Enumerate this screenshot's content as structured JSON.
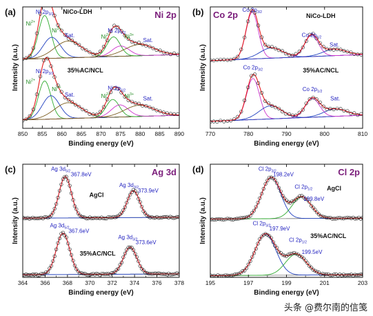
{
  "watermark": "头条 @费尔南的信笺",
  "colors": {
    "envelope": "#1a1a1a",
    "fit_total": "#e31a1c",
    "component_1": "#1f3fbf",
    "component_2": "#2eaa2e",
    "component_3": "#cc33cc",
    "component_4": "#19b3b3",
    "baseline": "#777777",
    "sat_fit": "#7a5c1e",
    "panel_title": "#7b1e7b",
    "label_blue": "#1f1fbf",
    "label_green": "#1f8a1f"
  },
  "chart_data": [
    {
      "panel": "(a)",
      "title": "Ni 2p",
      "type": "line",
      "xlabel": "Binding energy (eV)",
      "ylabel": "Intensity (a.u.)",
      "xlim": [
        850,
        890
      ],
      "xticks": [
        850,
        855,
        860,
        865,
        870,
        875,
        880,
        885,
        890
      ],
      "reverse_x": false,
      "ylim": [
        0,
        2.6
      ],
      "grid": false,
      "samples": [
        {
          "name": "NiCo-LDH",
          "offset": 1.3,
          "baseline": [
            0.18,
            0.28
          ],
          "points_step": 0.9,
          "peaks": [
            {
              "c": 855.6,
              "a": 0.92,
              "w": 1.6,
              "col": "component_2"
            },
            {
              "c": 857.4,
              "a": 0.45,
              "w": 2.2,
              "col": "component_1"
            },
            {
              "c": 861.6,
              "a": 0.36,
              "w": 3.5,
              "col": "sat_fit"
            },
            {
              "c": 873.2,
              "a": 0.42,
              "w": 1.7,
              "col": "component_2"
            },
            {
              "c": 875.0,
              "a": 0.22,
              "w": 2.2,
              "col": "component_3"
            },
            {
              "c": 879.8,
              "a": 0.24,
              "w": 3.8,
              "col": "sat_fit"
            }
          ]
        },
        {
          "name": "35%AC/NCL",
          "offset": 0.0,
          "baseline": [
            0.18,
            0.28
          ],
          "points_step": 0.9,
          "peaks": [
            {
              "c": 855.6,
              "a": 0.82,
              "w": 1.6,
              "col": "component_2"
            },
            {
              "c": 857.2,
              "a": 0.5,
              "w": 2.2,
              "col": "component_1"
            },
            {
              "c": 861.6,
              "a": 0.34,
              "w": 3.5,
              "col": "sat_fit"
            },
            {
              "c": 873.0,
              "a": 0.38,
              "w": 1.7,
              "col": "component_2"
            },
            {
              "c": 874.8,
              "a": 0.26,
              "w": 2.2,
              "col": "component_3"
            },
            {
              "c": 879.8,
              "a": 0.24,
              "w": 3.8,
              "col": "sat_fit"
            }
          ]
        }
      ],
      "labels": [
        {
          "text": "NiCo-LDH",
          "x": 864,
          "y": 2.45,
          "color": "#111111",
          "bold": true
        },
        {
          "text": "Ni 2p3/2",
          "x": 855.6,
          "y": 2.45,
          "color": "label_blue"
        },
        {
          "text": "Ni2+",
          "x": 852.0,
          "y": 2.2,
          "color": "label_green"
        },
        {
          "text": "Ni3+",
          "x": 858.6,
          "y": 2.05,
          "color": "label_green"
        },
        {
          "text": "Sat.",
          "x": 862.0,
          "y": 1.95,
          "color": "label_blue"
        },
        {
          "text": "Ni 2p1/2",
          "x": 874.0,
          "y": 2.05,
          "color": "label_blue"
        },
        {
          "text": "Ni2+",
          "x": 871.2,
          "y": 1.92,
          "color": "label_green"
        },
        {
          "text": "Ni3+",
          "x": 877.2,
          "y": 1.92,
          "color": "label_green"
        },
        {
          "text": "Sat.",
          "x": 882.0,
          "y": 1.85,
          "color": "label_blue"
        },
        {
          "text": "35%AC/NCL",
          "x": 866,
          "y": 1.2,
          "color": "#111111",
          "bold": true
        },
        {
          "text": "Ni 2p3/2",
          "x": 855.6,
          "y": 1.18,
          "color": "label_blue"
        },
        {
          "text": "Ni2+",
          "x": 852.0,
          "y": 0.95,
          "color": "label_green"
        },
        {
          "text": "Ni3+",
          "x": 858.6,
          "y": 0.8,
          "color": "label_green"
        },
        {
          "text": "Sat.",
          "x": 862.0,
          "y": 0.68,
          "color": "label_blue"
        },
        {
          "text": "Ni 2p1/2",
          "x": 874.0,
          "y": 0.82,
          "color": "label_blue"
        },
        {
          "text": "Ni2+",
          "x": 871.2,
          "y": 0.65,
          "color": "label_green"
        },
        {
          "text": "Ni3+",
          "x": 877.2,
          "y": 0.65,
          "color": "label_green"
        },
        {
          "text": "Sat.",
          "x": 882.0,
          "y": 0.6,
          "color": "label_blue"
        }
      ]
    },
    {
      "panel": "(b)",
      "title": "Co 2p",
      "type": "line",
      "xlabel": "Binding energy (eV)",
      "ylabel": "Intensity (a.u.)",
      "xlim": [
        770,
        810
      ],
      "xticks": [
        770,
        780,
        790,
        800,
        810
      ],
      "reverse_x": false,
      "ylim": [
        0,
        2.6
      ],
      "grid": false,
      "samples": [
        {
          "name": "NiCo-LDH",
          "offset": 1.3,
          "baseline": [
            0.15,
            0.28
          ],
          "points_step": 0.9,
          "peaks": [
            {
              "c": 781.0,
              "a": 1.0,
              "w": 1.6,
              "col": "component_3"
            },
            {
              "c": 786.0,
              "a": 0.22,
              "w": 3.0,
              "col": "component_1"
            },
            {
              "c": 796.6,
              "a": 0.46,
              "w": 1.8,
              "col": "component_3"
            },
            {
              "c": 802.6,
              "a": 0.14,
              "w": 3.0,
              "col": "component_1"
            }
          ]
        },
        {
          "name": "35%AC/NCL",
          "offset": 0.0,
          "baseline": [
            0.15,
            0.28
          ],
          "points_step": 0.9,
          "peaks": [
            {
              "c": 781.2,
              "a": 0.88,
              "w": 1.7,
              "col": "component_3"
            },
            {
              "c": 785.8,
              "a": 0.28,
              "w": 3.0,
              "col": "component_1"
            },
            {
              "c": 796.8,
              "a": 0.4,
              "w": 1.9,
              "col": "component_3"
            },
            {
              "c": 802.8,
              "a": 0.16,
              "w": 3.0,
              "col": "component_1"
            }
          ]
        }
      ],
      "labels": [
        {
          "text": "Co 2p3/2",
          "x": 781.0,
          "y": 2.5,
          "color": "label_blue"
        },
        {
          "text": "NiCo-LDH",
          "x": 799.0,
          "y": 2.36,
          "color": "#111111",
          "bold": true
        },
        {
          "text": "Co 2p1/2",
          "x": 796.6,
          "y": 1.96,
          "color": "label_blue"
        },
        {
          "text": "Sat.",
          "x": 802.6,
          "y": 1.75,
          "color": "label_blue"
        },
        {
          "text": "35%AC/NCL",
          "x": 799.0,
          "y": 1.2,
          "color": "#111111",
          "bold": true
        },
        {
          "text": "Co 2p3/2",
          "x": 781.2,
          "y": 1.26,
          "color": "label_blue"
        },
        {
          "text": "Co 2p1/2",
          "x": 796.8,
          "y": 0.8,
          "color": "label_blue"
        },
        {
          "text": "Sat.",
          "x": 802.8,
          "y": 0.6,
          "color": "label_blue"
        }
      ]
    },
    {
      "panel": "(c)",
      "title": "Ag 3d",
      "type": "line",
      "xlabel": "Binding energy (eV)",
      "ylabel": "Intensity (a.u.)",
      "xlim": [
        364,
        378
      ],
      "xticks": [
        364,
        366,
        368,
        370,
        372,
        374,
        376,
        378
      ],
      "reverse_x": false,
      "ylim": [
        0,
        2.6
      ],
      "grid": false,
      "samples": [
        {
          "name": "AgCl",
          "offset": 1.3,
          "baseline": [
            0.06,
            0.08
          ],
          "points_step": 0.15,
          "peaks": [
            {
              "c": 367.8,
              "a": 0.95,
              "w": 0.55,
              "col": "component_1"
            },
            {
              "c": 373.9,
              "a": 0.62,
              "w": 0.55,
              "col": "component_1"
            }
          ]
        },
        {
          "name": "35%AC/NCL",
          "offset": 0.0,
          "baseline": [
            0.06,
            0.08
          ],
          "points_step": 0.15,
          "peaks": [
            {
              "c": 367.6,
              "a": 0.95,
              "w": 0.6,
              "col": "component_1"
            },
            {
              "c": 373.6,
              "a": 0.62,
              "w": 0.6,
              "col": "component_1"
            }
          ]
        }
      ],
      "labels": [
        {
          "text": "Ag 3d5/2",
          "x": 367.4,
          "y": 2.45,
          "color": "label_blue"
        },
        {
          "text": "367.8eV",
          "x": 368.3,
          "y": 2.32,
          "color": "label_blue",
          "anchor": "start"
        },
        {
          "text": "Ag 3d3/2",
          "x": 373.5,
          "y": 2.08,
          "color": "label_blue"
        },
        {
          "text": "373.9eV",
          "x": 374.3,
          "y": 1.95,
          "color": "label_blue",
          "anchor": "start"
        },
        {
          "text": "AgCl",
          "x": 370.6,
          "y": 1.85,
          "color": "#111111",
          "bold": true
        },
        {
          "text": "Ag 3d5/2",
          "x": 367.3,
          "y": 1.15,
          "color": "label_blue"
        },
        {
          "text": "367.6eV",
          "x": 368.1,
          "y": 1.02,
          "color": "label_blue",
          "anchor": "start"
        },
        {
          "text": "Ag 3d3/2",
          "x": 373.4,
          "y": 0.88,
          "color": "label_blue"
        },
        {
          "text": "373.6eV",
          "x": 374.1,
          "y": 0.76,
          "color": "label_blue",
          "anchor": "start"
        },
        {
          "text": "35%AC/NCL",
          "x": 370.7,
          "y": 0.5,
          "color": "#111111",
          "bold": true
        }
      ]
    },
    {
      "panel": "(d)",
      "title": "Cl 2p",
      "type": "line",
      "xlabel": "Binding energy (eV)",
      "ylabel": "Intensity (a.u.)",
      "xlim": [
        195,
        203
      ],
      "xticks": [
        195,
        197,
        199,
        201,
        203
      ],
      "reverse_x": false,
      "ylim": [
        0,
        2.6
      ],
      "grid": false,
      "samples": [
        {
          "name": "AgCl",
          "offset": 1.3,
          "baseline": [
            0.04,
            0.06
          ],
          "points_step": 0.1,
          "peaks": [
            {
              "c": 198.2,
              "a": 0.95,
              "w": 0.5,
              "col": "component_1"
            },
            {
              "c": 199.8,
              "a": 0.5,
              "w": 0.5,
              "col": "component_2"
            }
          ]
        },
        {
          "name": "35%AC/NCL",
          "offset": 0.0,
          "baseline": [
            0.04,
            0.06
          ],
          "points_step": 0.1,
          "peaks": [
            {
              "c": 197.9,
              "a": 0.95,
              "w": 0.55,
              "col": "component_1"
            },
            {
              "c": 199.5,
              "a": 0.48,
              "w": 0.55,
              "col": "component_2"
            }
          ]
        }
      ],
      "labels": [
        {
          "text": "Cl 2p3/2",
          "x": 198.0,
          "y": 2.45,
          "color": "label_blue"
        },
        {
          "text": "198.2eV",
          "x": 198.3,
          "y": 2.32,
          "color": "label_blue",
          "anchor": "start"
        },
        {
          "text": "Cl 2p1/2",
          "x": 199.9,
          "y": 2.04,
          "color": "label_blue"
        },
        {
          "text": "199.8eV",
          "x": 199.9,
          "y": 1.76,
          "color": "label_blue",
          "anchor": "start"
        },
        {
          "text": "AgCl",
          "x": 201.5,
          "y": 2.0,
          "color": "#111111",
          "bold": true
        },
        {
          "text": "Cl 2p3/2",
          "x": 197.7,
          "y": 1.2,
          "color": "label_blue"
        },
        {
          "text": "197.9eV",
          "x": 198.1,
          "y": 1.08,
          "color": "label_blue",
          "anchor": "start"
        },
        {
          "text": "Cl 2p1/2",
          "x": 199.6,
          "y": 0.82,
          "color": "label_blue"
        },
        {
          "text": "199.5eV",
          "x": 199.8,
          "y": 0.54,
          "color": "label_blue",
          "anchor": "start"
        },
        {
          "text": "35%AC/NCL",
          "x": 201.2,
          "y": 0.9,
          "color": "#111111",
          "bold": true
        }
      ]
    }
  ]
}
